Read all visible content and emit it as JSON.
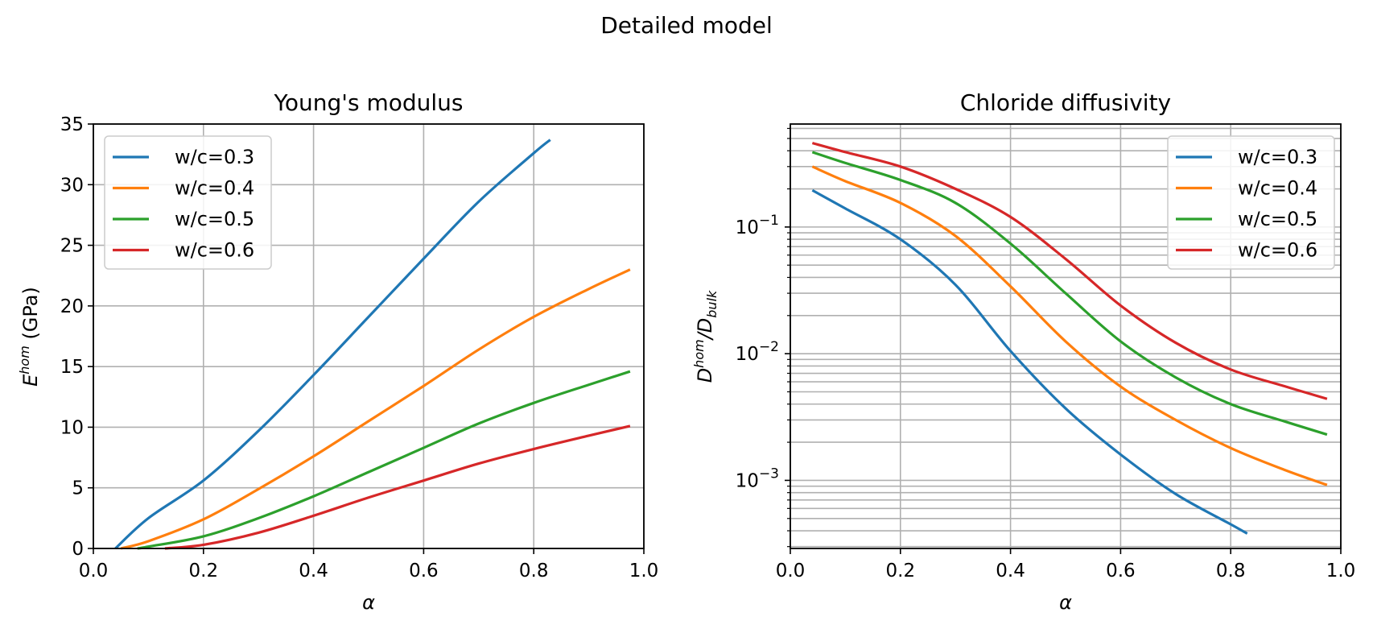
{
  "figure": {
    "title": "Detailed model"
  },
  "chart_data": [
    {
      "type": "line",
      "title": "Young's modulus",
      "xlabel": "α",
      "ylabel_main": "E",
      "ylabel_sup": "hom",
      "ylabel_rest": " (GPa)",
      "xlim": [
        0.0,
        1.0
      ],
      "ylim": [
        0,
        35
      ],
      "yscale": "linear",
      "grid": true,
      "legend_loc": "upper-left",
      "xticks": [
        0.0,
        0.2,
        0.4,
        0.6,
        0.8,
        1.0
      ],
      "xtick_labels": [
        "0.0",
        "0.2",
        "0.4",
        "0.6",
        "0.8",
        "1.0"
      ],
      "yticks": [
        0,
        5,
        10,
        15,
        20,
        25,
        30,
        35
      ],
      "ytick_labels": [
        "0",
        "5",
        "10",
        "15",
        "20",
        "25",
        "30",
        "35"
      ],
      "series": [
        {
          "name": "w/c=0.3",
          "color": "#1f77b4",
          "x": [
            0.04,
            0.1,
            0.2,
            0.3,
            0.4,
            0.5,
            0.6,
            0.7,
            0.8,
            0.83
          ],
          "y": [
            0.0,
            2.5,
            5.6,
            9.7,
            14.3,
            19.1,
            23.9,
            28.6,
            32.6,
            33.7
          ]
        },
        {
          "name": "w/c=0.4",
          "color": "#ff7f0e",
          "x": [
            0.05,
            0.1,
            0.2,
            0.3,
            0.4,
            0.5,
            0.6,
            0.7,
            0.8,
            0.9,
            0.975
          ],
          "y": [
            0.0,
            0.6,
            2.4,
            4.9,
            7.6,
            10.5,
            13.4,
            16.4,
            19.1,
            21.4,
            23.0
          ]
        },
        {
          "name": "w/c=0.5",
          "color": "#2ca02c",
          "x": [
            0.08,
            0.1,
            0.2,
            0.3,
            0.4,
            0.5,
            0.6,
            0.7,
            0.8,
            0.9,
            0.975
          ],
          "y": [
            0.0,
            0.15,
            1.0,
            2.5,
            4.3,
            6.3,
            8.3,
            10.3,
            12.0,
            13.5,
            14.6
          ]
        },
        {
          "name": "w/c=0.6",
          "color": "#d62728",
          "x": [
            0.13,
            0.2,
            0.3,
            0.4,
            0.5,
            0.6,
            0.7,
            0.8,
            0.9,
            0.975
          ],
          "y": [
            0.0,
            0.3,
            1.3,
            2.7,
            4.2,
            5.6,
            7.0,
            8.2,
            9.3,
            10.1
          ]
        }
      ]
    },
    {
      "type": "line",
      "title": "Chloride diffusivity",
      "xlabel": "α",
      "ylabel_num": "D",
      "ylabel_num_sup": "hom",
      "ylabel_den": "D",
      "ylabel_den_sub": "bulk",
      "xlim": [
        0.0,
        1.0
      ],
      "ylim": [
        0.00029,
        0.65
      ],
      "yscale": "log",
      "grid": true,
      "legend_loc": "upper-right",
      "xticks": [
        0.0,
        0.2,
        0.4,
        0.6,
        0.8,
        1.0
      ],
      "xtick_labels": [
        "0.0",
        "0.2",
        "0.4",
        "0.6",
        "0.8",
        "1.0"
      ],
      "ytick_base": "10",
      "yticks": [
        0.001,
        0.01,
        0.1
      ],
      "ytick_exponents": [
        "−3",
        "−2",
        "−1"
      ],
      "series": [
        {
          "name": "w/c=0.3",
          "color": "#1f77b4",
          "x": [
            0.04,
            0.1,
            0.2,
            0.3,
            0.4,
            0.5,
            0.6,
            0.7,
            0.8,
            0.83
          ],
          "y": [
            0.195,
            0.14,
            0.08,
            0.035,
            0.0105,
            0.0037,
            0.0016,
            0.00078,
            0.00045,
            0.00038
          ]
        },
        {
          "name": "w/c=0.4",
          "color": "#ff7f0e",
          "x": [
            0.04,
            0.1,
            0.2,
            0.3,
            0.4,
            0.5,
            0.6,
            0.7,
            0.8,
            0.9,
            0.975
          ],
          "y": [
            0.3,
            0.23,
            0.155,
            0.085,
            0.034,
            0.0125,
            0.0055,
            0.003,
            0.0018,
            0.0012,
            0.00092
          ]
        },
        {
          "name": "w/c=0.5",
          "color": "#2ca02c",
          "x": [
            0.04,
            0.1,
            0.2,
            0.3,
            0.4,
            0.5,
            0.6,
            0.7,
            0.8,
            0.9,
            0.975
          ],
          "y": [
            0.39,
            0.32,
            0.235,
            0.155,
            0.074,
            0.03,
            0.0125,
            0.0065,
            0.004,
            0.0029,
            0.0023
          ]
        },
        {
          "name": "w/c=0.6",
          "color": "#d62728",
          "x": [
            0.04,
            0.1,
            0.2,
            0.3,
            0.4,
            0.5,
            0.6,
            0.7,
            0.8,
            0.9,
            0.975
          ],
          "y": [
            0.46,
            0.39,
            0.3,
            0.2,
            0.12,
            0.056,
            0.024,
            0.0122,
            0.0075,
            0.0055,
            0.0044
          ]
        }
      ]
    }
  ]
}
